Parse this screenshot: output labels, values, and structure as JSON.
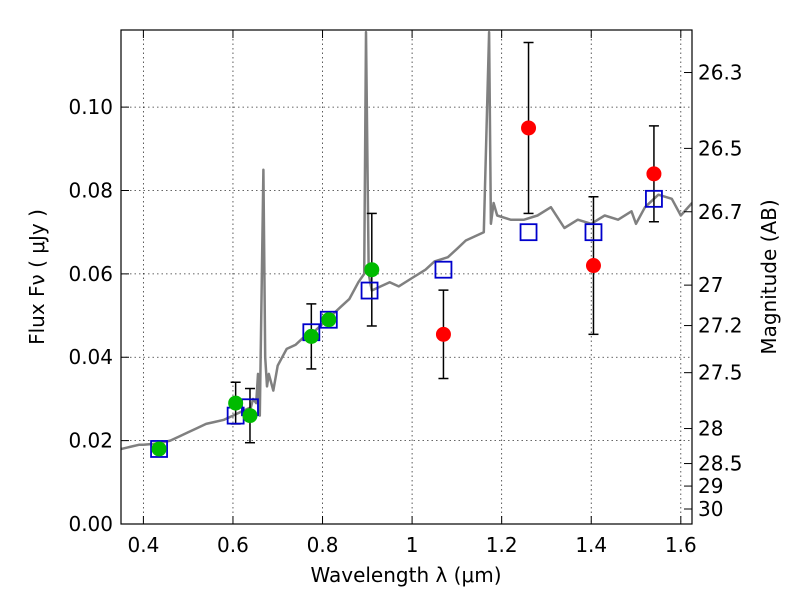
{
  "chart_data": {
    "type": "scatter",
    "xlabel": "Wavelength  λ (μm)",
    "ylabel": "Flux  Fν  ( μJy )",
    "y2label": "Magnitude (AB)",
    "xlim": [
      0.35,
      1.625
    ],
    "ylim": [
      0.0,
      0.1185
    ],
    "x_ticks": [
      0.4,
      0.6,
      0.8,
      1.0,
      1.2,
      1.4,
      1.6
    ],
    "x_tick_labels": [
      "0.4",
      "0.6",
      "0.8",
      "1",
      "1.2",
      "1.4",
      "1.6"
    ],
    "y_ticks": [
      0.0,
      0.02,
      0.04,
      0.06,
      0.08,
      0.1
    ],
    "y_tick_labels": [
      "0.00",
      "0.02",
      "0.04",
      "0.06",
      "0.08",
      "0.10"
    ],
    "mag_ticks": [
      {
        "label": "26.3",
        "flux": 0.1083
      },
      {
        "label": "26.5",
        "flux": 0.0901
      },
      {
        "label": "26.7",
        "flux": 0.0749
      },
      {
        "label": "27",
        "flux": 0.0573
      },
      {
        "label": "27.2",
        "flux": 0.0476
      },
      {
        "label": "27.5",
        "flux": 0.0363
      },
      {
        "label": "28",
        "flux": 0.0229
      },
      {
        "label": "28.5",
        "flux": 0.0145
      },
      {
        "label": "29",
        "flux": 0.0091
      },
      {
        "label": "30",
        "flux": 0.0036
      }
    ],
    "grid": true,
    "colors": {
      "model": "#808080",
      "model_photometry": "#0000cc",
      "green_points": "#00bb00",
      "red_points": "#ff0000",
      "errorbar": "#000000"
    },
    "model_spectrum": {
      "x": [
        0.35,
        0.37,
        0.39,
        0.4,
        0.42,
        0.44,
        0.46,
        0.48,
        0.5,
        0.52,
        0.54,
        0.56,
        0.58,
        0.6,
        0.62,
        0.64,
        0.645,
        0.652,
        0.656,
        0.66,
        0.668,
        0.672,
        0.676,
        0.68,
        0.69,
        0.7,
        0.71,
        0.72,
        0.74,
        0.76,
        0.78,
        0.8,
        0.82,
        0.84,
        0.86,
        0.88,
        0.893,
        0.897,
        0.903,
        0.91,
        0.93,
        0.95,
        0.97,
        1.0,
        1.03,
        1.05,
        1.08,
        1.1,
        1.12,
        1.14,
        1.16,
        1.172,
        1.176,
        1.182,
        1.19,
        1.22,
        1.25,
        1.28,
        1.31,
        1.34,
        1.37,
        1.4,
        1.43,
        1.46,
        1.49,
        1.5,
        1.52,
        1.55,
        1.58,
        1.6,
        1.625
      ],
      "y": [
        0.018,
        0.0185,
        0.019,
        0.019,
        0.0192,
        0.0195,
        0.02,
        0.021,
        0.022,
        0.023,
        0.024,
        0.0245,
        0.025,
        0.026,
        0.027,
        0.028,
        0.03,
        0.029,
        0.036,
        0.026,
        0.085,
        0.04,
        0.033,
        0.036,
        0.032,
        0.038,
        0.04,
        0.042,
        0.043,
        0.045,
        0.046,
        0.048,
        0.05,
        0.052,
        0.054,
        0.058,
        0.06,
        0.118,
        0.06,
        0.056,
        0.057,
        0.058,
        0.057,
        0.059,
        0.061,
        0.063,
        0.064,
        0.066,
        0.068,
        0.069,
        0.07,
        0.118,
        0.072,
        0.077,
        0.074,
        0.073,
        0.073,
        0.074,
        0.076,
        0.071,
        0.073,
        0.072,
        0.074,
        0.073,
        0.075,
        0.072,
        0.076,
        0.079,
        0.078,
        0.074,
        0.077
      ]
    },
    "model_photometry": {
      "x": [
        0.435,
        0.606,
        0.638,
        0.775,
        0.814,
        0.905,
        1.07,
        1.26,
        1.405,
        1.54
      ],
      "y": [
        0.018,
        0.026,
        0.028,
        0.046,
        0.049,
        0.056,
        0.061,
        0.07,
        0.07,
        0.078
      ]
    },
    "green_points": {
      "x": [
        0.435,
        0.606,
        0.638,
        0.775,
        0.814,
        0.91
      ],
      "y": [
        0.018,
        0.029,
        0.026,
        0.045,
        0.049,
        0.061
      ],
      "yerr": [
        0.0,
        0.005,
        0.0065,
        0.0078,
        0.0,
        0.0135
      ]
    },
    "red_points": {
      "x": [
        1.07,
        1.26,
        1.405,
        1.54
      ],
      "y": [
        0.0455,
        0.095,
        0.062,
        0.084
      ],
      "yerr": [
        0.0106,
        0.0205,
        0.0165,
        0.0115
      ]
    }
  }
}
